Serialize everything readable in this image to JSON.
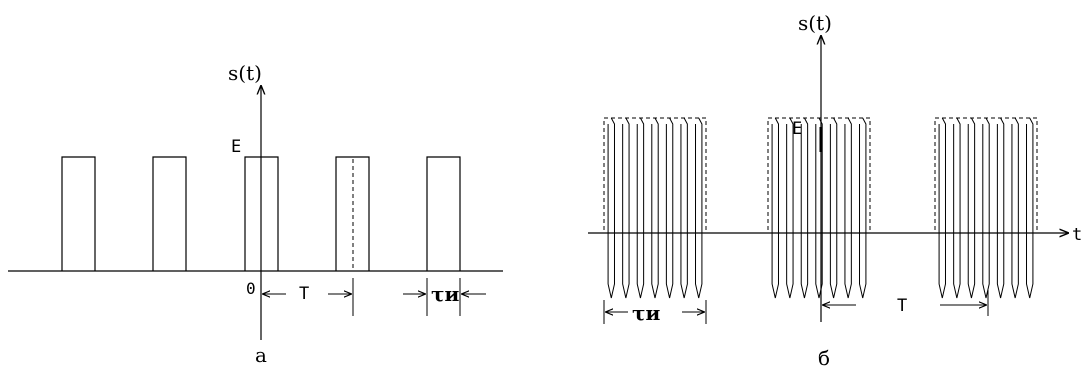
{
  "panel_a": {
    "axis_label": "s(t)",
    "amplitude_label": "E",
    "origin_label": "0",
    "period_label": "T",
    "pulse_width_label": "τи",
    "caption": "а"
  },
  "panel_b": {
    "axis_label": "s(t)",
    "amplitude_label": "E",
    "time_label": "t",
    "pulse_width_label": "τи",
    "period_label": "T",
    "caption": "б"
  }
}
